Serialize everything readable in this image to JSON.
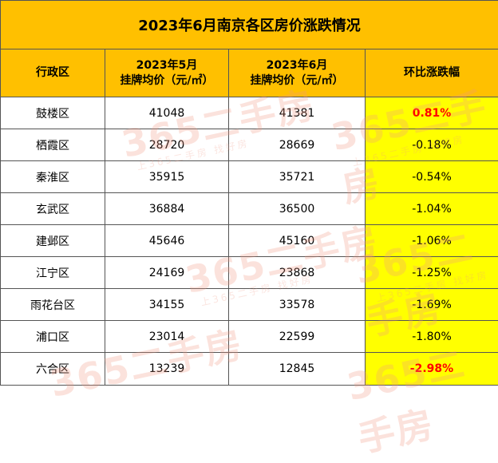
{
  "title": "2023年6月南京各区房价涨跌情况",
  "headers": {
    "district": "行政区",
    "may_line1": "2023年5月",
    "may_line2": "挂牌均价（元/㎡）",
    "june_line1": "2023年6月",
    "june_line2": "挂牌均价（元/㎡）",
    "change": "环比涨跌幅"
  },
  "rows": [
    {
      "district": "鼓楼区",
      "may": "41048",
      "june": "41381",
      "change": "0.81%",
      "trend": "up"
    },
    {
      "district": "栖霞区",
      "may": "28720",
      "june": "28669",
      "change": "-0.18%",
      "trend": "normal"
    },
    {
      "district": "秦淮区",
      "may": "35915",
      "june": "35721",
      "change": "-0.54%",
      "trend": "normal"
    },
    {
      "district": "玄武区",
      "may": "36884",
      "june": "36500",
      "change": "-1.04%",
      "trend": "normal"
    },
    {
      "district": "建邺区",
      "may": "45646",
      "june": "45160",
      "change": "-1.06%",
      "trend": "normal"
    },
    {
      "district": "江宁区",
      "may": "24169",
      "june": "23868",
      "change": "-1.25%",
      "trend": "normal"
    },
    {
      "district": "雨花台区",
      "may": "34155",
      "june": "33578",
      "change": "-1.69%",
      "trend": "normal"
    },
    {
      "district": "浦口区",
      "may": "23014",
      "june": "22599",
      "change": "-1.80%",
      "trend": "normal"
    },
    {
      "district": "六合区",
      "may": "13239",
      "june": "12845",
      "change": "-2.98%",
      "trend": "down"
    }
  ],
  "watermark": {
    "logo": "365二手房",
    "slogan": "上365二手房 找好房"
  },
  "colors": {
    "header_bg": "#ffc000",
    "change_bg": "#ffff00",
    "highlight_text": "#ff0000"
  }
}
